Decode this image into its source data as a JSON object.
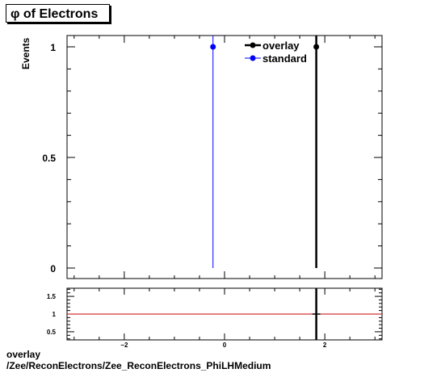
{
  "chart_data": [
    {
      "type": "scatter",
      "title": "φ of Electrons",
      "ylabel": "Events",
      "xlim": [
        -3.1416,
        3.1416
      ],
      "ylim": [
        0,
        1.05
      ],
      "yticks": [
        {
          "value": 0,
          "label": "0"
        },
        {
          "value": 0.5,
          "label": "0.5"
        },
        {
          "value": 1,
          "label": "1"
        }
      ],
      "legend_position": "top-right",
      "series": [
        {
          "name": "overlay",
          "color": "#000000",
          "points": [
            {
              "x": 1.83,
              "y": 1
            }
          ]
        },
        {
          "name": "standard",
          "color": "#0000ff",
          "points": [
            {
              "x": -0.23,
              "y": 1
            }
          ]
        }
      ]
    },
    {
      "type": "scatter",
      "title": "",
      "xlim": [
        -3.1416,
        3.1416
      ],
      "ylim": [
        0.27,
        1.73
      ],
      "xticks": [
        {
          "value": -2,
          "label": "−2"
        },
        {
          "value": 0,
          "label": "0"
        },
        {
          "value": 2,
          "label": "2"
        }
      ],
      "yticks": [
        {
          "value": 0.5,
          "label": "0.5"
        },
        {
          "value": 1,
          "label": "1"
        },
        {
          "value": 1.5,
          "label": "1.5"
        }
      ],
      "reference_line": {
        "y": 1,
        "color": "#cc0000"
      },
      "points": [
        {
          "x": 1.83,
          "y": 1
        }
      ]
    }
  ],
  "footer": {
    "line1": "overlay",
    "line2": "/Zee/ReconElectrons/Zee_ReconElectrons_PhiLHMedium"
  }
}
